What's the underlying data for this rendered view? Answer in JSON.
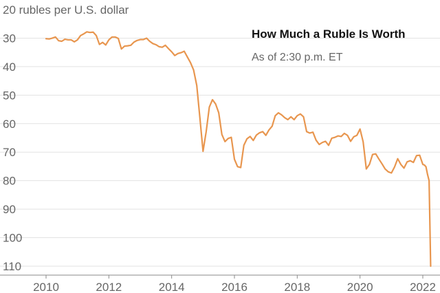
{
  "chart_data": {
    "type": "line",
    "title": "How Much a Ruble Is Worth",
    "subtitle": "As of 2:30 p.m. ET",
    "ylabel_suffix": "rubles per U.S. dollar",
    "y_ticks": [
      20,
      30,
      40,
      50,
      60,
      70,
      80,
      90,
      100,
      110
    ],
    "x_ticks": [
      2010,
      2012,
      2014,
      2016,
      2018,
      2020,
      2022
    ],
    "ylim": [
      20,
      112
    ],
    "xlim": [
      2009.5,
      2022.35
    ],
    "y_inverted": true,
    "color": "#e8964f",
    "series": [
      {
        "name": "Rubles per U.S. dollar",
        "x": [
          2010.0,
          2010.1,
          2010.2,
          2010.3,
          2010.4,
          2010.5,
          2010.6,
          2010.7,
          2010.8,
          2010.9,
          2011.0,
          2011.1,
          2011.2,
          2011.3,
          2011.4,
          2011.5,
          2011.6,
          2011.7,
          2011.8,
          2011.9,
          2012.0,
          2012.1,
          2012.2,
          2012.3,
          2012.4,
          2012.5,
          2012.6,
          2012.7,
          2012.8,
          2012.9,
          2013.0,
          2013.1,
          2013.2,
          2013.3,
          2013.4,
          2013.5,
          2013.6,
          2013.7,
          2013.8,
          2013.9,
          2014.0,
          2014.1,
          2014.2,
          2014.3,
          2014.4,
          2014.5,
          2014.6,
          2014.7,
          2014.8,
          2014.9,
          2015.0,
          2015.1,
          2015.2,
          2015.3,
          2015.4,
          2015.5,
          2015.6,
          2015.7,
          2015.8,
          2015.9,
          2016.0,
          2016.1,
          2016.2,
          2016.3,
          2016.4,
          2016.5,
          2016.6,
          2016.7,
          2016.8,
          2016.9,
          2017.0,
          2017.1,
          2017.2,
          2017.3,
          2017.4,
          2017.5,
          2017.6,
          2017.7,
          2017.8,
          2017.9,
          2018.0,
          2018.1,
          2018.2,
          2018.3,
          2018.4,
          2018.5,
          2018.6,
          2018.7,
          2018.8,
          2018.9,
          2019.0,
          2019.1,
          2019.2,
          2019.3,
          2019.4,
          2019.5,
          2019.6,
          2019.7,
          2019.8,
          2019.9,
          2020.0,
          2020.1,
          2020.2,
          2020.3,
          2020.4,
          2020.5,
          2020.6,
          2020.7,
          2020.8,
          2020.9,
          2021.0,
          2021.1,
          2021.2,
          2021.3,
          2021.4,
          2021.5,
          2021.6,
          2021.7,
          2021.8,
          2021.9,
          2022.0,
          2022.05,
          2022.1,
          2022.15,
          2022.2,
          2022.25
        ],
        "values": [
          30.2,
          30.3,
          30.0,
          29.6,
          30.9,
          31.1,
          30.4,
          30.6,
          30.6,
          31.3,
          30.6,
          29.1,
          28.5,
          27.8,
          28.0,
          27.9,
          29.1,
          32.2,
          31.5,
          32.4,
          30.6,
          29.6,
          29.6,
          30.1,
          33.8,
          32.8,
          32.7,
          32.5,
          31.4,
          30.8,
          30.5,
          30.5,
          30.0,
          31.1,
          31.9,
          32.3,
          33.0,
          33.2,
          32.5,
          33.7,
          34.8,
          36.1,
          35.4,
          35.1,
          34.6,
          36.6,
          38.6,
          41.2,
          46.6,
          58.0,
          69.7,
          62.8,
          54.2,
          51.6,
          53.1,
          56.2,
          63.8,
          66.3,
          65.2,
          64.8,
          72.5,
          75.1,
          75.4,
          67.6,
          65.3,
          64.5,
          65.9,
          64.0,
          63.2,
          62.8,
          64.1,
          62.2,
          60.9,
          57.2,
          56.2,
          56.9,
          57.9,
          58.6,
          57.6,
          58.6,
          57.2,
          56.6,
          57.6,
          62.8,
          63.3,
          63.0,
          65.8,
          67.3,
          66.6,
          66.2,
          67.6,
          65.1,
          64.8,
          64.3,
          64.5,
          63.4,
          64.1,
          66.2,
          64.6,
          64.1,
          61.9,
          66.4,
          75.9,
          74.3,
          70.8,
          70.6,
          72.4,
          74.1,
          75.9,
          76.9,
          77.3,
          75.2,
          72.3,
          74.3,
          75.6,
          73.4,
          73.0,
          73.6,
          71.2,
          71.1,
          74.3,
          74.5,
          75.1,
          77.8,
          80.0,
          110.0
        ]
      }
    ]
  }
}
